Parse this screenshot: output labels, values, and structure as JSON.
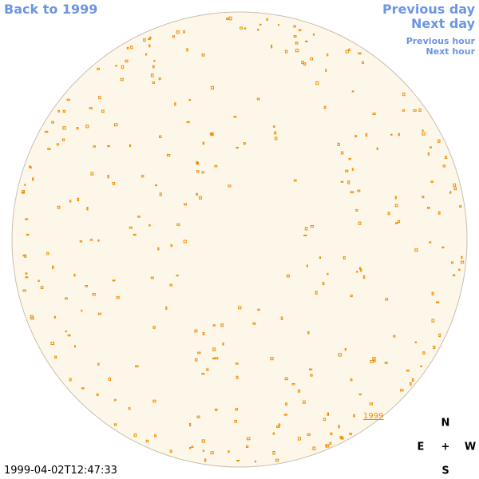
{
  "nav": {
    "back": "Back to 1999",
    "previous_day": "Previous day",
    "next_day": "Next day",
    "previous_hour": "Previous hour",
    "next_hour": "Next hour"
  },
  "timestamp": "1999-04-02T12:47:33",
  "overlay_link": "1999",
  "compass": {
    "north": "N",
    "east": "E",
    "center": "+",
    "west": "W",
    "south": "S"
  }
}
